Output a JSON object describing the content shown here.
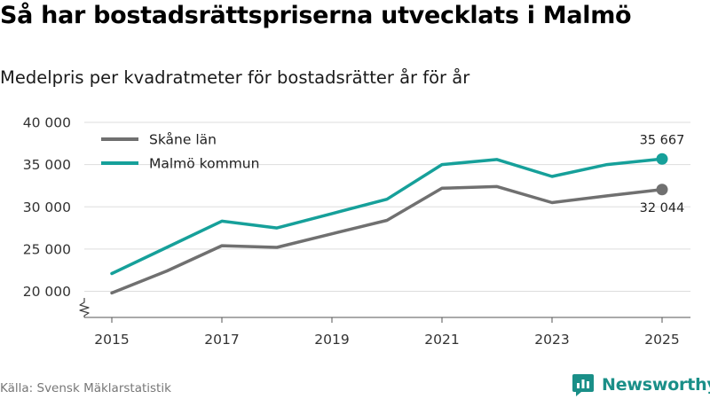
{
  "title": "Så har bostadsrättspriserna utvecklats i Malmö",
  "subtitle": "Medelpris per kvadratmeter för bostadsrätter år för år",
  "source": "Källa: Svensk Mäklarstatistik",
  "brand": "Newsworthy",
  "colors": {
    "skane": "#707070",
    "malmo": "#16a09a",
    "grid": "#dddddd",
    "brand": "#1a8f88"
  },
  "chart_data": {
    "type": "line",
    "title": "Så har bostadsrättspriserna utvecklats i Malmö",
    "subtitle": "Medelpris per kvadratmeter för bostadsrätter år för år",
    "xlabel": "",
    "ylabel": "",
    "x": [
      2015,
      2016,
      2017,
      2018,
      2019,
      2020,
      2021,
      2022,
      2023,
      2024,
      2025
    ],
    "xlim": [
      2014.7,
      2025.3
    ],
    "xticks": [
      2015,
      2017,
      2019,
      2021,
      2023,
      2025
    ],
    "xtick_labels": [
      "2015",
      "2017",
      "2019",
      "2021",
      "2023",
      "2025"
    ],
    "ylim": [
      18000,
      40000
    ],
    "yticks": [
      20000,
      25000,
      30000,
      35000,
      40000
    ],
    "ytick_labels": [
      "20 000",
      "25 000",
      "30 000",
      "35 000",
      "40 000"
    ],
    "grid": true,
    "axis_break": true,
    "legend_position": "top-left",
    "series": [
      {
        "name": "Skåne län",
        "color": "#707070",
        "values": [
          19800,
          22400,
          25400,
          25200,
          26800,
          28400,
          32200,
          32400,
          30500,
          31300,
          32044
        ],
        "end_label": "32 044"
      },
      {
        "name": "Malmö kommun",
        "color": "#16a09a",
        "values": [
          22100,
          25200,
          28300,
          27500,
          29200,
          30900,
          35000,
          35600,
          33600,
          35000,
          35667
        ],
        "end_label": "35 667"
      }
    ]
  }
}
